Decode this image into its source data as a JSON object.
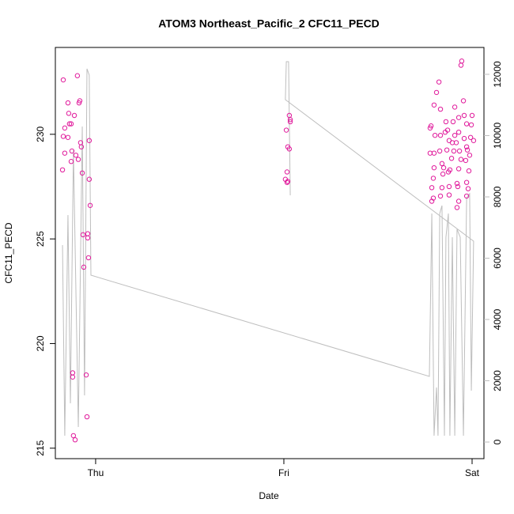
{
  "chart_data": {
    "type": "scatter",
    "title": "ATOM3 Northeast_Pacific_2 CFC11_PECD",
    "xlabel": "Date",
    "ylabel": "CFC11_PECD",
    "xlim": [
      -0.214,
      2.063
    ],
    "ylim": [
      214.5,
      234.15
    ],
    "y2lim": [
      -542,
      12877
    ],
    "xticks": [
      {
        "value": 0,
        "label": "Thu"
      },
      {
        "value": 1,
        "label": "Fri"
      },
      {
        "value": 2,
        "label": "Sat"
      }
    ],
    "yticks": [
      215,
      220,
      225,
      230
    ],
    "y2ticks": [
      0,
      2000,
      4000,
      6000,
      8000,
      10000,
      12000
    ],
    "y2color": "#bebebe",
    "series": [
      {
        "mode": "points",
        "color": "#e0199b",
        "x": [
          -0.172,
          -0.097,
          -0.147,
          -0.084,
          -0.088,
          -0.143,
          -0.113,
          -0.164,
          -0.13,
          -0.139,
          -0.172,
          -0.147,
          -0.08,
          -0.034,
          -0.164,
          -0.126,
          -0.105,
          -0.076,
          -0.13,
          -0.092,
          -0.176,
          -0.071,
          -0.034,
          -0.029,
          -0.067,
          -0.042,
          -0.042,
          -0.038,
          -0.063,
          -0.122,
          -0.122,
          -0.05,
          -0.046,
          -0.118,
          -0.109,
          1.029,
          1.034,
          1.034,
          1.013,
          1.021,
          1.029,
          1.017,
          1.008,
          1.021,
          1.017,
          1.945,
          1.941,
          1.824,
          1.811,
          1.798,
          1.832,
          1.908,
          1.954,
          1.861,
          1.929,
          1.958,
          2.0,
          1.782,
          1.777,
          1.899,
          1.971,
          1.996,
          1.803,
          1.832,
          1.857,
          1.87,
          1.908,
          1.929,
          1.958,
          1.992,
          1.878,
          1.895,
          1.916,
          2.008,
          1.971,
          1.777,
          1.798,
          1.828,
          1.866,
          1.903,
          1.933,
          1.975,
          1.987,
          1.941,
          1.84,
          1.891,
          1.966,
          1.798,
          1.849,
          1.874,
          1.882,
          1.929,
          1.983,
          1.794,
          1.845,
          1.92,
          1.971,
          1.84,
          1.878,
          1.786,
          1.979,
          1.924,
          1.794,
          1.786,
          1.832,
          1.878,
          1.929,
          1.92,
          1.971
        ],
        "values": [
          232.6,
          232.8,
          231.5,
          231.6,
          231.5,
          231.0,
          230.9,
          230.3,
          230.5,
          230.5,
          229.9,
          229.85,
          229.6,
          229.7,
          229.1,
          229.2,
          229.0,
          229.4,
          228.7,
          228.8,
          228.3,
          228.15,
          227.85,
          226.6,
          225.2,
          225.25,
          225.05,
          224.1,
          223.65,
          218.6,
          218.4,
          218.5,
          216.5,
          215.6,
          215.4,
          230.9,
          230.7,
          230.6,
          230.2,
          229.4,
          229.3,
          228.2,
          227.85,
          227.75,
          227.7,
          233.5,
          233.3,
          232.5,
          232.0,
          231.4,
          231.2,
          231.3,
          231.6,
          230.6,
          230.8,
          230.9,
          230.9,
          230.4,
          230.3,
          230.6,
          230.5,
          230.45,
          229.95,
          229.95,
          230.1,
          230.2,
          229.95,
          230.1,
          229.8,
          229.85,
          229.7,
          229.6,
          229.6,
          229.7,
          229.4,
          229.1,
          229.1,
          229.2,
          229.25,
          229.2,
          229.2,
          229.25,
          229.0,
          228.8,
          228.6,
          228.85,
          228.75,
          228.4,
          228.4,
          228.2,
          228.3,
          228.35,
          228.25,
          227.9,
          228.1,
          227.65,
          227.7,
          227.45,
          227.5,
          227.45,
          227.4,
          227.5,
          226.95,
          226.8,
          227.05,
          227.1,
          226.8,
          226.5,
          227.05
        ]
      },
      {
        "mode": "line",
        "axis": "y2",
        "color": "#bebebe",
        "x": [
          -0.176,
          -0.164,
          -0.147,
          -0.134,
          -0.118,
          -0.092,
          -0.071,
          -0.059,
          -0.046,
          -0.034,
          -0.025,
          1.773,
          1.786,
          1.798,
          1.811,
          1.819,
          1.828,
          1.84,
          1.853,
          1.861,
          1.874,
          1.882,
          1.895,
          1.908,
          1.92,
          1.937,
          1.954,
          1.971,
          1.987,
          1.996,
          2.008,
          1.008,
          1.013,
          1.025,
          1.034
        ],
        "values": [
          6426,
          206,
          7406,
          1265,
          9523,
          490,
          10297,
          1523,
          12181,
          11974,
          5445,
          2142,
          7458,
          206,
          1781,
          206,
          7458,
          7716,
          206,
          6684,
          7458,
          206,
          6684,
          206,
          6942,
          6684,
          206,
          7974,
          8103,
          1677,
          6555,
          11174,
          12413,
          12413,
          8052
        ]
      }
    ]
  }
}
